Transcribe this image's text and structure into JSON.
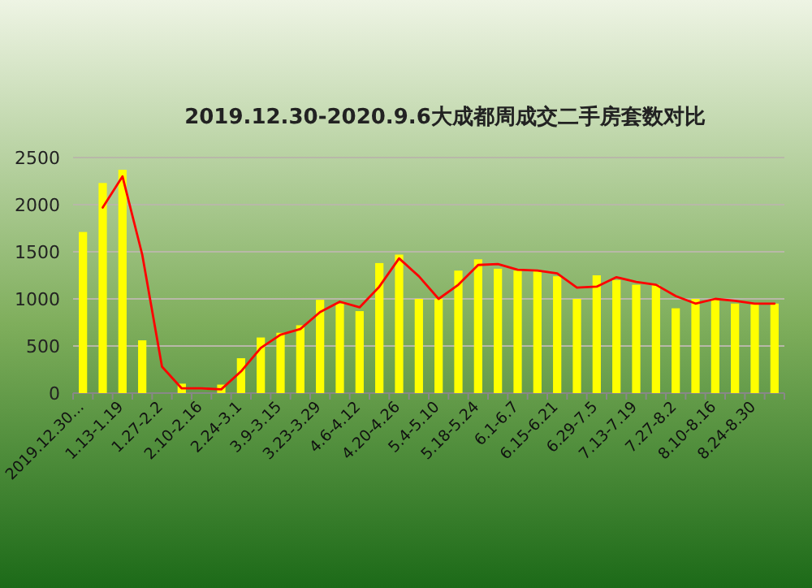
{
  "chart_data": {
    "type": "bar",
    "title": "2019.12.30-2020.9.6大成都周成交二手房套数对比",
    "categories": [
      "2019.12.30...",
      null,
      "1.13-1.19",
      null,
      "1.27-2.2",
      null,
      "2.10-2.16",
      null,
      "2.24-3.1",
      null,
      "3.9-3.15",
      null,
      "3.23-3.29",
      null,
      "4.6-4.12",
      null,
      "4.20-4.26",
      null,
      "5.4-5.10",
      null,
      "5.18-5.24",
      null,
      "6.1-6.7",
      null,
      "6.15-6.21",
      null,
      "6.29-7.5",
      null,
      "7.13-7.19",
      null,
      "7.27-8.2",
      null,
      "8.10-8.16",
      null,
      "8.24-8.30",
      null
    ],
    "series": [
      {
        "color": "#ffff00",
        "values": [
          1710,
          2230,
          2370,
          560,
          0,
          100,
          0,
          90,
          370,
          590,
          640,
          720,
          990,
          950,
          870,
          1380,
          1470,
          1000,
          1000,
          1300,
          1420,
          1320,
          1300,
          1300,
          1240,
          1000,
          1250,
          1200,
          1150,
          1150,
          900,
          1000,
          1000,
          950,
          950,
          950
        ]
      },
      {
        "type": "line",
        "color": "#ff0000",
        "values": [
          null,
          1970,
          2300,
          1470,
          280,
          50,
          50,
          40,
          230,
          480,
          620,
          680,
          860,
          970,
          910,
          1130,
          1430,
          1240,
          1000,
          1150,
          1360,
          1370,
          1310,
          1300,
          1270,
          1120,
          1130,
          1230,
          1180,
          1150,
          1030,
          950,
          1000,
          980,
          950,
          950
        ]
      }
    ],
    "ylim": [
      0,
      2500
    ],
    "yticks": [
      0,
      500,
      1000,
      1500,
      2000,
      2500
    ],
    "grid": "y"
  }
}
